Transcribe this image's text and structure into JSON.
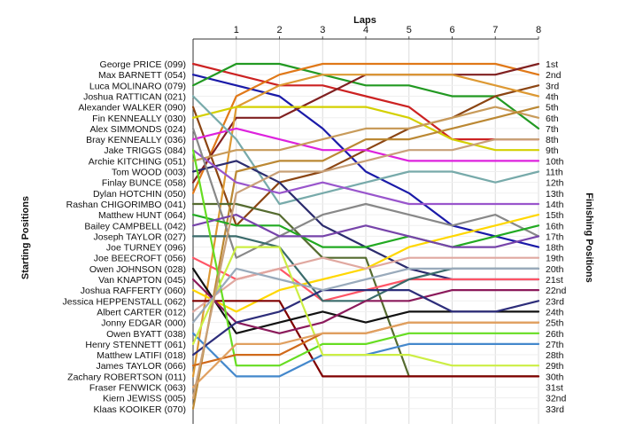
{
  "chart_data": {
    "type": "line",
    "title": "",
    "xlabel": "Laps",
    "ylabel_left": "Starting Positions",
    "ylabel_right": "Finishing Positions",
    "x": [
      0,
      1,
      2,
      3,
      4,
      5,
      6,
      7,
      8
    ],
    "x_tick_labels": [
      "1",
      "2",
      "3",
      "4",
      "5",
      "6",
      "7",
      "8"
    ],
    "xlim": [
      0,
      8
    ],
    "ylim": [
      1,
      33
    ],
    "y_inverted": true,
    "grid": true,
    "starting_labels": [
      "George PRICE (099)",
      "Max BARNETT (054)",
      "Luca MOLINARO (079)",
      "Joshua RATTICAN (021)",
      "Alexander WALKER (090)",
      "Fin KENNEALLY (030)",
      "Alex SIMMONDS (024)",
      "Bray KENNEALLY (036)",
      "Jake TRIGGS (084)",
      "Archie KITCHING (051)",
      "Tom WOOD (003)",
      "Finlay BUNCE (058)",
      "Dylan HOTCHIN (050)",
      "Rashan CHIGORIMBO (041)",
      "Matthew HUNT (064)",
      "Bailey CAMPBELL (042)",
      "Joseph TAYLOR (027)",
      "Joe TURNEY (096)",
      "Joe BEECROFT (056)",
      "Owen JOHNSON (028)",
      "Van KNAPTON (045)",
      "Joshua RAFFERTY (060)",
      "Jessica HEPPENSTALL (062)",
      "Albert CARTER (012)",
      "Jonny EDGAR (000)",
      "Owen BYATT (038)",
      "Henry STENNETT (061)",
      "Matthew LATIFI (018)",
      "James TAYLOR (066)",
      "Zachary ROBERTSON (011)",
      "Fraser FENWICK (063)",
      "Kiern JEWISS (005)",
      "Klaas KOOIKER (070)"
    ],
    "finishing_labels": [
      "1st",
      "2nd",
      "3rd",
      "4th",
      "5th",
      "6th",
      "7th",
      "8th",
      "9th",
      "10th",
      "11th",
      "12th",
      "13th",
      "14th",
      "15th",
      "16th",
      "17th",
      "18th",
      "19th",
      "20th",
      "21st",
      "22nd",
      "23rd",
      "24th",
      "25th",
      "26th",
      "27th",
      "28th",
      "29th",
      "30th",
      "31st",
      "32nd",
      "33rd"
    ],
    "series": [
      {
        "color": "#cc2222",
        "values": [
          1,
          2,
          3,
          3,
          4,
          5,
          8,
          8,
          8
        ]
      },
      {
        "color": "#1a1aa8",
        "values": [
          2,
          3,
          4,
          7,
          11,
          13,
          16,
          17,
          18
        ]
      },
      {
        "color": "#229922",
        "values": [
          3,
          1,
          1,
          2,
          3,
          3,
          4,
          4,
          7
        ]
      },
      {
        "color": "#e07818",
        "values": [
          13,
          4,
          2,
          1,
          1,
          1,
          1,
          1,
          2
        ]
      },
      {
        "color": "#802020",
        "values": [
          12,
          6,
          6,
          4,
          2,
          2,
          2,
          2,
          1
        ]
      },
      {
        "color": "#8b4513",
        "values": [
          5,
          16,
          12,
          11,
          9,
          7,
          6,
          4,
          3
        ]
      },
      {
        "color": "#dd9933",
        "values": [
          30,
          5,
          3,
          2,
          2,
          2,
          2,
          3,
          4
        ]
      },
      {
        "color": "#d4d000",
        "values": [
          6,
          5,
          5,
          5,
          5,
          6,
          8,
          9,
          9
        ]
      },
      {
        "color": "#dd22dd",
        "values": [
          8,
          7,
          8,
          9,
          9,
          10,
          10,
          10,
          10
        ]
      },
      {
        "color": "#77aaaa",
        "values": [
          4,
          8,
          14,
          13,
          12,
          11,
          11,
          12,
          11
        ]
      },
      {
        "color": "#c89b5a",
        "values": [
          10,
          9,
          9,
          8,
          7,
          7,
          6,
          5,
          6
        ]
      },
      {
        "color": "#2c2c6e",
        "values": [
          11,
          10,
          12,
          16,
          18,
          20,
          21,
          21,
          21
        ]
      },
      {
        "color": "#bb8833",
        "values": [
          33,
          11,
          10,
          10,
          8,
          8,
          7,
          6,
          5
        ]
      },
      {
        "color": "#9955cc",
        "values": [
          9,
          12,
          13,
          12,
          13,
          14,
          14,
          14,
          14
        ]
      },
      {
        "color": "#556b2f",
        "values": [
          14,
          14,
          15,
          19,
          19,
          30,
          30,
          30,
          30
        ]
      },
      {
        "color": "#888888",
        "values": [
          7,
          19,
          17,
          15,
          14,
          15,
          16,
          15,
          17
        ]
      },
      {
        "color": "#22aa22",
        "values": [
          15,
          16,
          16,
          18,
          18,
          17,
          18,
          17,
          16
        ]
      },
      {
        "color": "#ffd700",
        "values": [
          22,
          24,
          22,
          21,
          20,
          18,
          17,
          16,
          15
        ]
      },
      {
        "color": "#ff5566",
        "values": [
          19,
          21,
          20,
          23,
          22,
          21,
          21,
          21,
          21
        ]
      },
      {
        "color": "#3a6b6b",
        "values": [
          17,
          17,
          18,
          23,
          23,
          21,
          20,
          20,
          20
        ]
      },
      {
        "color": "#7744aa",
        "values": [
          16,
          15,
          17,
          17,
          16,
          17,
          18,
          18,
          17
        ]
      },
      {
        "color": "#e0a8a0",
        "values": [
          24,
          21,
          20,
          19,
          20,
          19,
          19,
          19,
          19
        ]
      },
      {
        "color": "#800000",
        "values": [
          23,
          23,
          23,
          30,
          30,
          30,
          30,
          30,
          30
        ]
      },
      {
        "color": "#111111",
        "values": [
          20,
          26,
          25,
          24,
          25,
          24,
          24,
          24,
          24
        ]
      },
      {
        "color": "#8b1a5b",
        "values": [
          21,
          25,
          26,
          25,
          23,
          23,
          22,
          22,
          22
        ]
      },
      {
        "color": "#4488cc",
        "values": [
          26,
          30,
          30,
          28,
          28,
          27,
          27,
          27,
          27
        ]
      },
      {
        "color": "#66dd22",
        "values": [
          9,
          29,
          29,
          27,
          27,
          26,
          26,
          26,
          26
        ]
      },
      {
        "color": "#2d2d7a",
        "values": [
          28,
          25,
          24,
          22,
          22,
          22,
          24,
          24,
          23
        ]
      },
      {
        "color": "#ccee44",
        "values": [
          27,
          18,
          18,
          28,
          28,
          28,
          29,
          29,
          29
        ]
      },
      {
        "color": "#d06a1a",
        "values": [
          29,
          28,
          28,
          26,
          26,
          25,
          25,
          25,
          25
        ]
      },
      {
        "color": "#e0a060",
        "values": [
          31,
          27,
          27,
          26,
          26,
          25,
          25,
          25,
          25
        ]
      },
      {
        "color": "#99aabb",
        "values": [
          25,
          20,
          21,
          22,
          21,
          20,
          20,
          20,
          20
        ]
      },
      {
        "color": "#c8a078",
        "values": [
          32,
          13,
          11,
          11,
          10,
          9,
          9,
          8,
          8
        ]
      }
    ]
  }
}
